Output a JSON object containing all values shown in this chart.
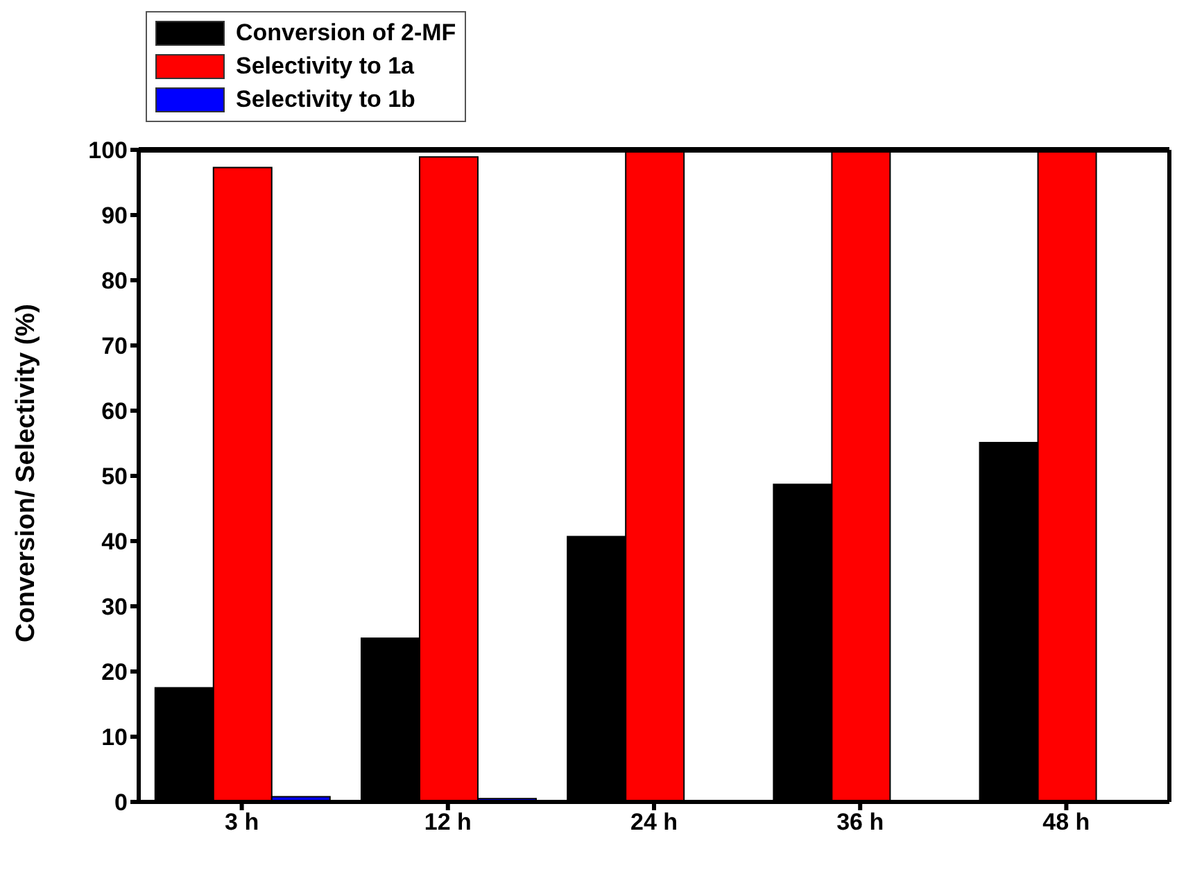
{
  "chart_data": {
    "type": "bar",
    "ylabel": "Conversion/ Selectivity (%)",
    "categories": [
      "3 h",
      "12 h",
      "24 h",
      "36 h",
      "48 h"
    ],
    "series": [
      {
        "name": "Conversion of 2-MF",
        "color": "#000000",
        "values": [
          17.5,
          25.1,
          40.7,
          48.7,
          55.1
        ]
      },
      {
        "name": "Selectivity to 1a",
        "color": "#ff0000",
        "values": [
          97.3,
          98.9,
          100,
          100,
          100
        ]
      },
      {
        "name": "Selectivity to 1b",
        "color": "#0000ff",
        "values": [
          0.8,
          0.5,
          0,
          0,
          0
        ]
      }
    ],
    "ylim": [
      0,
      100
    ],
    "yticks": [
      0,
      10,
      20,
      30,
      40,
      50,
      60,
      70,
      80,
      90,
      100
    ],
    "grid": false,
    "legend": "top left"
  }
}
